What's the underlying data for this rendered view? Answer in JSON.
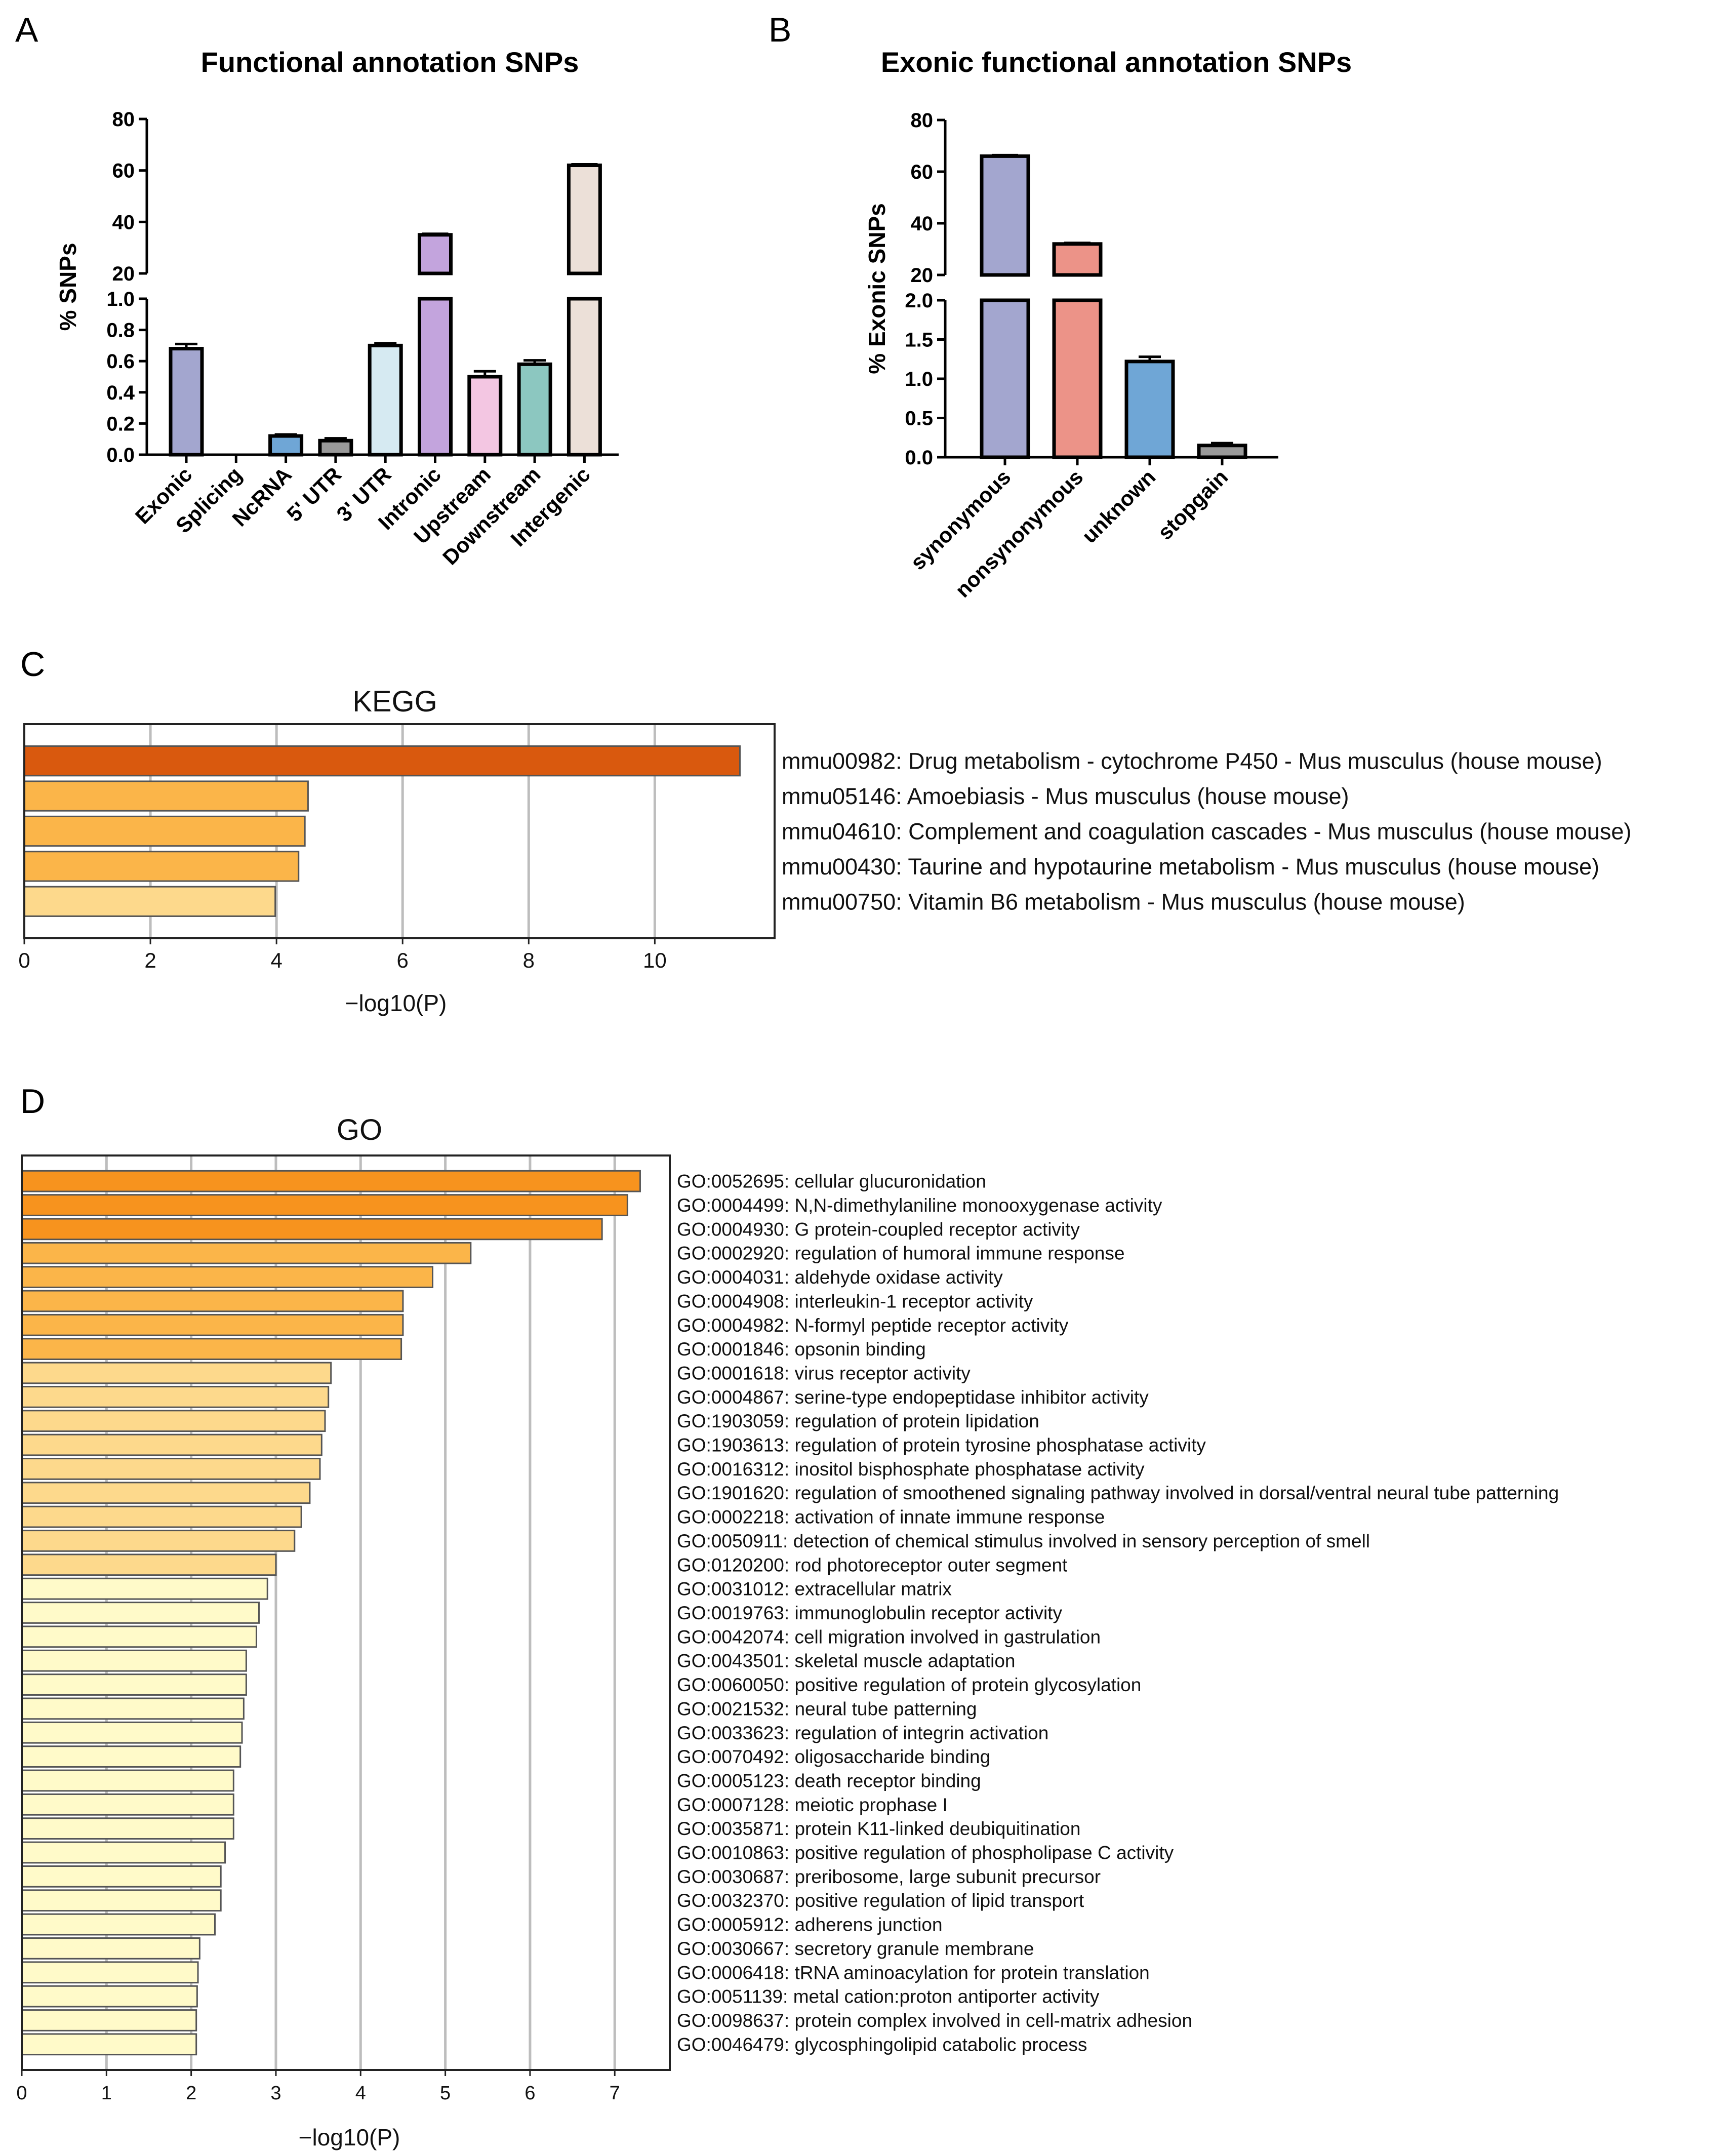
{
  "panel_letters": {
    "a": "A",
    "b": "B",
    "c": "C",
    "d": "D"
  },
  "colors": {
    "bar_a": [
      "#a3a6cf",
      "#ffffff",
      "#6fa6d6",
      "#999999",
      "#d6eaf2",
      "#c3a4dd",
      "#f3c6e2",
      "#8cc7c0",
      "#ece0d8"
    ],
    "bar_b": [
      "#a3a6cf",
      "#ec9388",
      "#6fa6d6",
      "#999999"
    ],
    "enrich_levels": [
      "#d9590e",
      "#f7931e",
      "#fbb549",
      "#fdd98c",
      "#fffac9"
    ]
  },
  "chart_data": [
    {
      "id": "A",
      "type": "bar",
      "title": "Functional annotation SNPs",
      "ylabel": "% SNPs",
      "xlabel": "",
      "broken_axis": true,
      "lower_ylim": [
        0,
        1.0
      ],
      "upper_ylim": [
        20,
        80
      ],
      "lower_ticks": [
        "0.0",
        "0.2",
        "0.4",
        "0.6",
        "0.8",
        "1.0"
      ],
      "upper_ticks": [
        "20",
        "40",
        "60",
        "80"
      ],
      "categories": [
        "Exonic",
        "Splicing",
        "NcRNA",
        "5' UTR",
        "3' UTR",
        "Intronic",
        "Upstream",
        "Downstream",
        "Intergenic"
      ],
      "values": [
        0.68,
        0.0,
        0.12,
        0.09,
        0.7,
        35,
        0.5,
        0.58,
        62
      ],
      "errors": [
        0.03,
        0.0,
        0.01,
        0.015,
        0.015,
        0.4,
        0.035,
        0.025,
        0.4
      ]
    },
    {
      "id": "B",
      "type": "bar",
      "title": "Exonic functional annotation SNPs",
      "ylabel": "% Exonic SNPs",
      "xlabel": "",
      "broken_axis": true,
      "lower_ylim": [
        0,
        2.0
      ],
      "upper_ylim": [
        20,
        80
      ],
      "lower_ticks": [
        "0.0",
        "0.5",
        "1.0",
        "1.5",
        "2.0"
      ],
      "upper_ticks": [
        "20",
        "40",
        "60",
        "80"
      ],
      "categories": [
        "synonymous",
        "nonsynonymous",
        "unknown",
        "stopgain"
      ],
      "values": [
        66,
        32,
        1.22,
        0.15
      ],
      "errors": [
        0.4,
        0.4,
        0.06,
        0.03
      ]
    },
    {
      "id": "C",
      "type": "bar",
      "orientation": "horizontal",
      "title": "KEGG",
      "xlabel": "−log10(P)",
      "xlim": [
        0,
        11.9
      ],
      "xticks": [
        "0",
        "2",
        "4",
        "6",
        "8",
        "10"
      ],
      "categories": [
        "mmu00982: Drug metabolism - cytochrome P450 - Mus musculus (house mouse)",
        "mmu05146: Amoebiasis - Mus musculus (house mouse)",
        "mmu04610: Complement and coagulation cascades - Mus musculus (house mouse)",
        "mmu00430: Taurine and hypotaurine metabolism - Mus musculus (house mouse)",
        "mmu00750: Vitamin B6 metabolism - Mus musculus (house mouse)"
      ],
      "values": [
        11.35,
        4.5,
        4.45,
        4.35,
        3.98
      ]
    },
    {
      "id": "D",
      "type": "bar",
      "orientation": "horizontal",
      "title": "GO",
      "xlabel": "−log10(P)",
      "xlim": [
        0,
        7.65
      ],
      "xticks": [
        "0",
        "1",
        "2",
        "3",
        "4",
        "5",
        "6",
        "7"
      ],
      "categories": [
        "GO:0052695: cellular glucuronidation",
        "GO:0004499: N,N-dimethylaniline monooxygenase activity",
        "GO:0004930: G protein-coupled receptor activity",
        "GO:0002920: regulation of humoral immune response",
        "GO:0004031: aldehyde oxidase activity",
        "GO:0004908: interleukin-1 receptor activity",
        "GO:0004982: N-formyl peptide receptor activity",
        "GO:0001846: opsonin binding",
        "GO:0001618: virus receptor activity",
        "GO:0004867: serine-type endopeptidase inhibitor activity",
        "GO:1903059: regulation of protein lipidation",
        "GO:1903613: regulation of protein tyrosine phosphatase activity",
        "GO:0016312: inositol bisphosphate phosphatase activity",
        "GO:1901620: regulation of smoothened signaling pathway involved in dorsal/ventral neural tube patterning",
        "GO:0002218: activation of innate immune response",
        "GO:0050911: detection of chemical stimulus involved in sensory perception of smell",
        "GO:0120200: rod photoreceptor outer segment",
        "GO:0031012: extracellular matrix",
        "GO:0019763: immunoglobulin receptor activity",
        "GO:0042074: cell migration involved in gastrulation",
        "GO:0043501: skeletal muscle adaptation",
        "GO:0060050: positive regulation of protein glycosylation",
        "GO:0021532: neural tube patterning",
        "GO:0033623: regulation of integrin activation",
        "GO:0070492: oligosaccharide binding",
        "GO:0005123: death receptor binding",
        "GO:0007128: meiotic prophase I",
        "GO:0035871: protein K11-linked deubiquitination",
        "GO:0010863: positive regulation of phospholipase C activity",
        "GO:0030687: preribosome, large subunit precursor",
        "GO:0032370: positive regulation of lipid transport",
        "GO:0005912: adherens junction",
        "GO:0030667: secretory granule membrane",
        "GO:0006418: tRNA aminoacylation for protein translation",
        "GO:0051139: metal cation:proton antiporter activity",
        "GO:0098637: protein complex involved in cell-matrix adhesion",
        "GO:0046479: glycosphingolipid catabolic process"
      ],
      "values": [
        7.3,
        7.15,
        6.85,
        5.3,
        4.85,
        4.5,
        4.5,
        4.48,
        3.65,
        3.62,
        3.58,
        3.54,
        3.52,
        3.4,
        3.3,
        3.22,
        3.0,
        2.9,
        2.8,
        2.77,
        2.65,
        2.65,
        2.62,
        2.6,
        2.58,
        2.5,
        2.5,
        2.5,
        2.4,
        2.35,
        2.35,
        2.28,
        2.1,
        2.08,
        2.07,
        2.06,
        2.06
      ]
    }
  ]
}
